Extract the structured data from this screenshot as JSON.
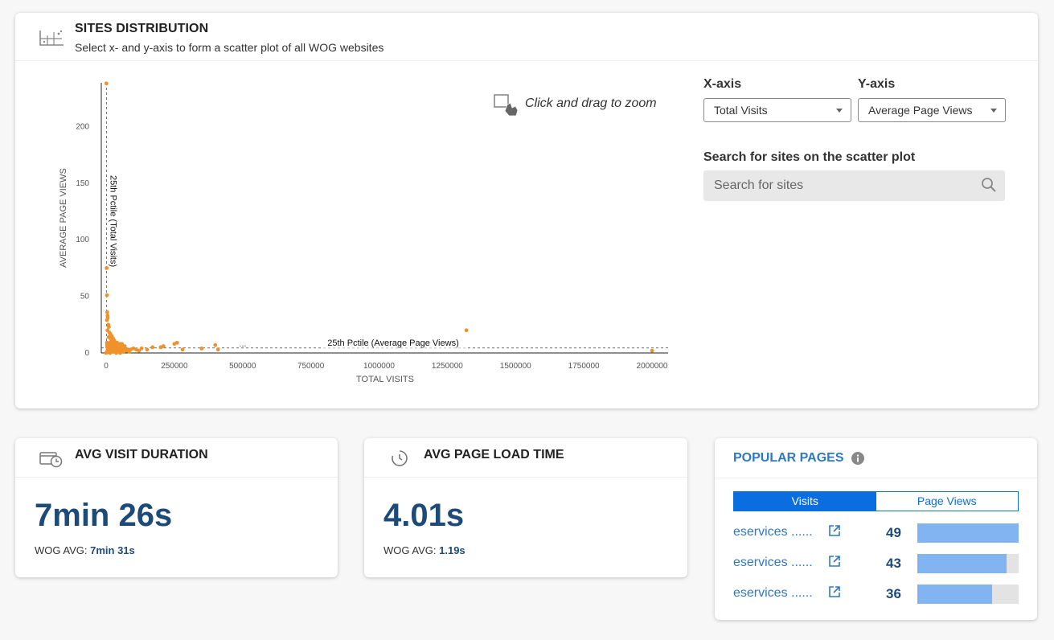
{
  "distribution": {
    "title": "SITES DISTRIBUTION",
    "subtitle": "Select x- and y-axis to form a scatter plot of all WOG websites",
    "zoom_hint": "Click and drag to zoom",
    "xaxis_label": "X-axis",
    "yaxis_label": "Y-axis",
    "xaxis_value": "Total Visits",
    "yaxis_value": "Average Page Views",
    "search_label": "Search for sites on the scatter plot",
    "search_placeholder": "Search for sites"
  },
  "chart_data": {
    "type": "scatter",
    "xlabel": "TOTAL VISITS",
    "ylabel": "AVERAGE PAGE VIEWS",
    "xlim": [
      0,
      2000000
    ],
    "ylim": [
      0,
      240
    ],
    "xticks": [
      "0",
      "250000",
      "500000",
      "750000",
      "1000000",
      "1250000",
      "1500000",
      "1750000",
      "2000000"
    ],
    "yticks": [
      "0",
      "50",
      "100",
      "150",
      "200"
    ],
    "xtick_values": [
      0,
      250000,
      500000,
      750000,
      1000000,
      1250000,
      1500000,
      1750000,
      2000000
    ],
    "ytick_values": [
      0,
      50,
      100,
      150,
      200
    ],
    "point_color": "#f0922b",
    "reference_lines": [
      {
        "axis": "x",
        "value": 1000,
        "label": "25th Pctile (Total Visits)"
      },
      {
        "axis": "y",
        "value": 3,
        "label": "25th Pctile (Average Page Views)"
      }
    ],
    "ellipsis_label": "...",
    "points": [
      [
        1000,
        238
      ],
      [
        2000,
        75
      ],
      [
        3000,
        51
      ],
      [
        4000,
        36
      ],
      [
        5000,
        33
      ],
      [
        6000,
        31
      ],
      [
        3000,
        29
      ],
      [
        8000,
        25
      ],
      [
        10000,
        23
      ],
      [
        5000,
        20
      ],
      [
        12000,
        18
      ],
      [
        15000,
        17
      ],
      [
        20000,
        15
      ],
      [
        9000,
        14
      ],
      [
        25000,
        13
      ],
      [
        18000,
        12
      ],
      [
        30000,
        11
      ],
      [
        22000,
        10
      ],
      [
        35000,
        9
      ],
      [
        14000,
        9
      ],
      [
        40000,
        8
      ],
      [
        28000,
        8
      ],
      [
        45000,
        7
      ],
      [
        50000,
        6
      ],
      [
        33000,
        6
      ],
      [
        55000,
        5
      ],
      [
        60000,
        5
      ],
      [
        38000,
        4
      ],
      [
        65000,
        4
      ],
      [
        70000,
        3
      ],
      [
        80000,
        3
      ],
      [
        90000,
        3
      ],
      [
        100000,
        4
      ],
      [
        110000,
        3
      ],
      [
        120000,
        2
      ],
      [
        130000,
        4
      ],
      [
        150000,
        3
      ],
      [
        170000,
        5
      ],
      [
        200000,
        5
      ],
      [
        210000,
        6
      ],
      [
        250000,
        8
      ],
      [
        260000,
        9
      ],
      [
        280000,
        3
      ],
      [
        350000,
        4
      ],
      [
        400000,
        7
      ],
      [
        410000,
        3
      ],
      [
        1320000,
        20
      ],
      [
        2000000,
        2
      ],
      [
        6000,
        2
      ],
      [
        12000,
        2
      ],
      [
        20000,
        2
      ],
      [
        30000,
        2
      ],
      [
        42000,
        2
      ],
      [
        52000,
        2
      ],
      [
        75000,
        2
      ],
      [
        7000,
        1
      ],
      [
        16000,
        1
      ],
      [
        26000,
        1
      ],
      [
        36000,
        1
      ],
      [
        48000,
        1
      ],
      [
        62000,
        1
      ],
      [
        85000,
        1
      ],
      [
        4000,
        5
      ],
      [
        11000,
        6
      ],
      [
        17000,
        7
      ],
      [
        24000,
        3
      ],
      [
        32000,
        4
      ],
      [
        58000,
        8
      ],
      [
        68000,
        6
      ]
    ]
  },
  "visit_duration": {
    "title": "AVG VISIT DURATION",
    "value": "7min 26s",
    "wog_label": "WOG AVG:",
    "wog_value": "7min 31s"
  },
  "load_time": {
    "title": "AVG PAGE LOAD TIME",
    "value": "4.01s",
    "wog_label": "WOG AVG:",
    "wog_value": "1.19s"
  },
  "popular_pages": {
    "title": "POPULAR PAGES",
    "tabs": [
      "Visits",
      "Page Views"
    ],
    "active_tab": 0,
    "max_value": 49,
    "rows": [
      {
        "label": "eservices ......",
        "value": "49",
        "num": 49
      },
      {
        "label": "eservices ......",
        "value": "43",
        "num": 43
      },
      {
        "label": "eservices ......",
        "value": "36",
        "num": 36
      }
    ]
  }
}
